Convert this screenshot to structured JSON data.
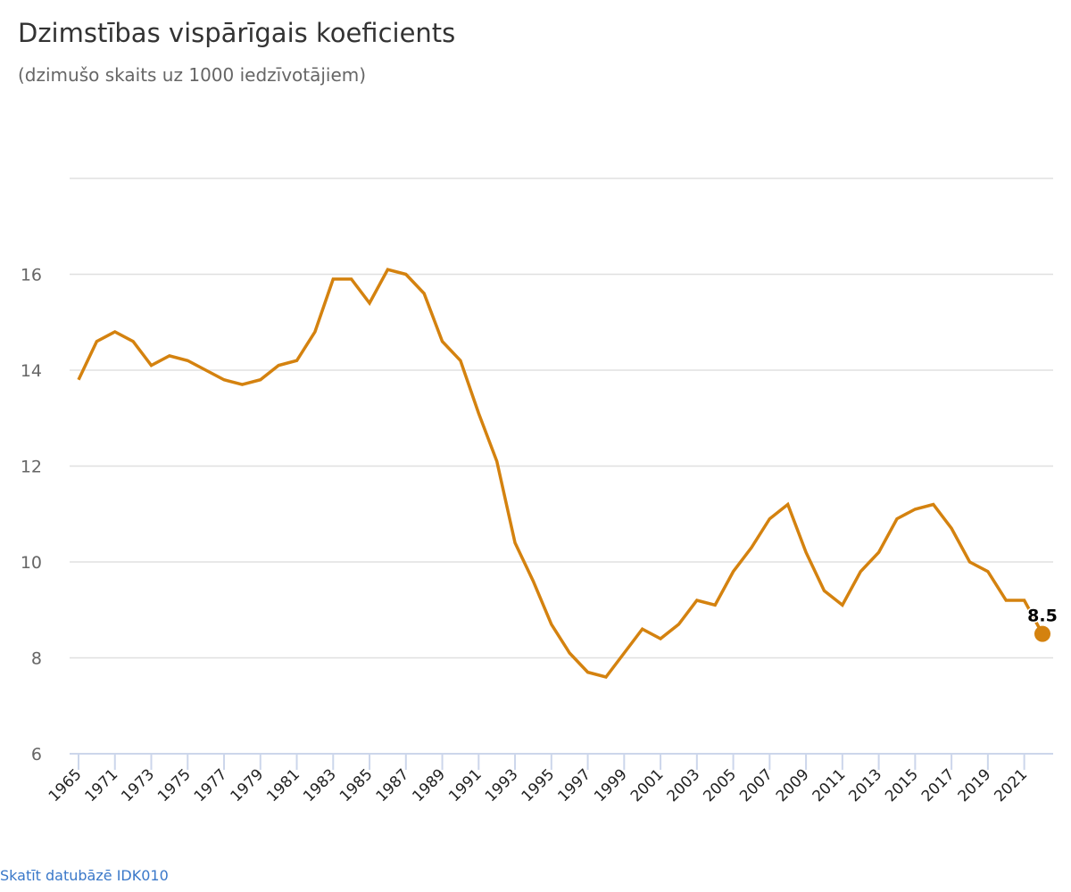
{
  "chart_data": {
    "type": "line",
    "title": "Dzimstības vispārīgais koeficients",
    "subtitle": "(dzimušo skaits uz 1000 iedzīvotājiem)",
    "xlabel": "",
    "ylabel": "",
    "ylim": [
      6,
      18
    ],
    "yticks": [
      6,
      8,
      10,
      12,
      14,
      16
    ],
    "grid": true,
    "categories": [
      "1965",
      "1970",
      "1971",
      "1972",
      "1973",
      "1974",
      "1975",
      "1976",
      "1977",
      "1978",
      "1979",
      "1980",
      "1981",
      "1982",
      "1983",
      "1984",
      "1985",
      "1986",
      "1987",
      "1988",
      "1989",
      "1990",
      "1991",
      "1992",
      "1993",
      "1994",
      "1995",
      "1996",
      "1997",
      "1998",
      "1999",
      "2000",
      "2001",
      "2002",
      "2003",
      "2004",
      "2005",
      "2006",
      "2007",
      "2008",
      "2009",
      "2010",
      "2011",
      "2012",
      "2013",
      "2014",
      "2015",
      "2016",
      "2017",
      "2018",
      "2019",
      "2020",
      "2021",
      "2022"
    ],
    "series": [
      {
        "name": "Dzimstības vispārīgais koeficients",
        "color": "#d4820f",
        "values": [
          13.8,
          14.6,
          14.8,
          14.6,
          14.1,
          14.3,
          14.2,
          14.0,
          13.8,
          13.7,
          13.8,
          14.1,
          14.2,
          14.8,
          15.9,
          15.9,
          15.4,
          16.1,
          16.0,
          15.6,
          14.6,
          14.2,
          13.1,
          12.1,
          10.4,
          9.6,
          8.7,
          8.1,
          7.7,
          7.6,
          8.1,
          8.6,
          8.4,
          8.7,
          9.2,
          9.1,
          9.8,
          10.3,
          10.9,
          11.2,
          10.2,
          9.4,
          9.1,
          9.8,
          10.2,
          10.9,
          11.1,
          11.2,
          10.7,
          10.0,
          9.8,
          9.2,
          9.2,
          8.5
        ]
      }
    ],
    "annotations": [
      {
        "category": "2022",
        "label": "8.5"
      }
    ]
  },
  "footer": {
    "link_text": "Skatīt datubāzē IDK010"
  }
}
